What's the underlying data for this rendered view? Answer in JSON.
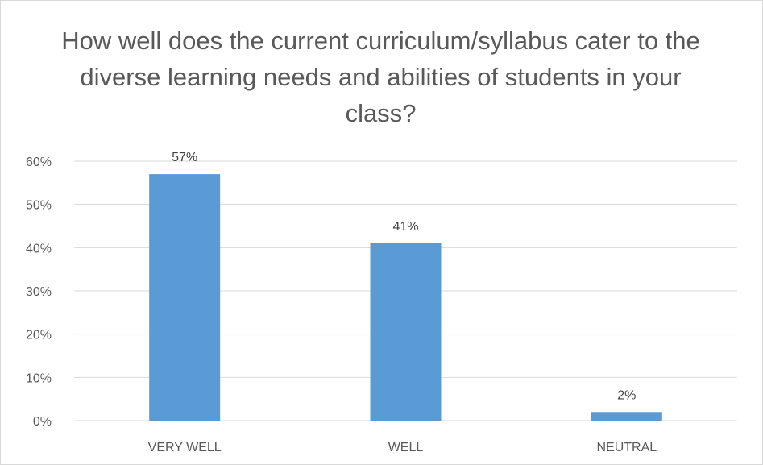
{
  "chart_data": {
    "type": "bar",
    "title": "How well does the current curriculum/syllabus cater to the diverse learning needs and abilities of students in your class?",
    "categories": [
      "VERY WELL",
      "WELL",
      "NEUTRAL"
    ],
    "values": [
      57,
      41,
      2
    ],
    "value_labels": [
      "57%",
      "41%",
      "2%"
    ],
    "ylim": [
      0,
      60
    ],
    "yticks": [
      0,
      10,
      20,
      30,
      40,
      50,
      60
    ],
    "ytick_labels": [
      "0%",
      "10%",
      "20%",
      "30%",
      "40%",
      "50%",
      "60%"
    ],
    "xlabel": "",
    "ylabel": "",
    "grid": true,
    "legend": "none",
    "bar_color": "#5b9bd5",
    "grid_color": "#d9d9d9"
  }
}
